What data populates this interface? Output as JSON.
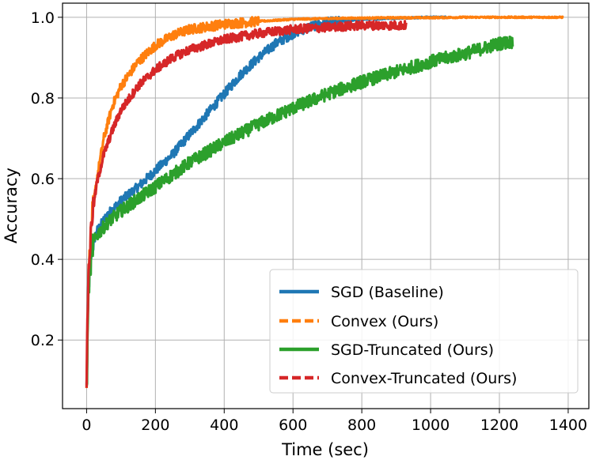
{
  "chart_data": {
    "type": "line",
    "title": "",
    "xlabel": "Time (sec)",
    "ylabel": "Accuracy",
    "xlim": [
      -70,
      1460
    ],
    "ylim": [
      0.03,
      1.035
    ],
    "xticks": [
      0,
      200,
      400,
      600,
      800,
      1000,
      1200,
      1400
    ],
    "yticks": [
      0.2,
      0.4,
      0.6,
      0.8,
      1.0
    ],
    "xtick_labels": [
      "0",
      "200",
      "400",
      "600",
      "800",
      "1000",
      "1200",
      "1400"
    ],
    "ytick_labels": [
      "0.2",
      "0.4",
      "0.6",
      "0.8",
      "1.0"
    ],
    "grid": true,
    "legend_position": "lower-right",
    "series": [
      {
        "name": "SGD (Baseline)",
        "color": "#1f77b4",
        "style": "solid",
        "noise": 0.012,
        "x": [
          0,
          5,
          15,
          30,
          60,
          100,
          150,
          200,
          250,
          300,
          350,
          400,
          450,
          500,
          550,
          600,
          650,
          700,
          800,
          900,
          1000,
          1060
        ],
        "y": [
          0.08,
          0.33,
          0.43,
          0.47,
          0.51,
          0.545,
          0.58,
          0.62,
          0.66,
          0.71,
          0.76,
          0.81,
          0.86,
          0.9,
          0.935,
          0.96,
          0.977,
          0.987,
          0.995,
          0.998,
          1.0,
          1.0
        ]
      },
      {
        "name": "Convex (Ours)",
        "color": "#ff7f0e",
        "style": "dashed",
        "noise": 0.012,
        "x": [
          0,
          5,
          15,
          30,
          50,
          75,
          100,
          150,
          200,
          250,
          300,
          400,
          500,
          600,
          700,
          800,
          900,
          1000,
          1100,
          1200,
          1300,
          1385
        ],
        "y": [
          0.1,
          0.35,
          0.5,
          0.6,
          0.7,
          0.78,
          0.83,
          0.89,
          0.93,
          0.955,
          0.97,
          0.983,
          0.99,
          0.995,
          0.997,
          0.998,
          0.999,
          0.999,
          1.0,
          1.0,
          1.0,
          1.0
        ]
      },
      {
        "name": "SGD-Truncated (Ours)",
        "color": "#2ca02c",
        "style": "solid",
        "noise": 0.016,
        "x": [
          0,
          5,
          15,
          30,
          60,
          100,
          150,
          200,
          300,
          400,
          500,
          600,
          700,
          800,
          900,
          1000,
          1100,
          1200,
          1240
        ],
        "y": [
          0.06,
          0.33,
          0.43,
          0.46,
          0.49,
          0.52,
          0.55,
          0.58,
          0.64,
          0.69,
          0.735,
          0.775,
          0.81,
          0.84,
          0.865,
          0.89,
          0.91,
          0.935,
          0.94
        ]
      },
      {
        "name": "Convex-Truncated (Ours)",
        "color": "#d62728",
        "style": "dashed",
        "noise": 0.011,
        "x": [
          0,
          5,
          15,
          30,
          50,
          75,
          100,
          150,
          200,
          250,
          300,
          400,
          500,
          600,
          700,
          800,
          900,
          930
        ],
        "y": [
          0.1,
          0.36,
          0.5,
          0.59,
          0.66,
          0.72,
          0.77,
          0.83,
          0.87,
          0.9,
          0.92,
          0.945,
          0.96,
          0.97,
          0.975,
          0.98,
          0.98,
          0.98
        ]
      }
    ]
  }
}
